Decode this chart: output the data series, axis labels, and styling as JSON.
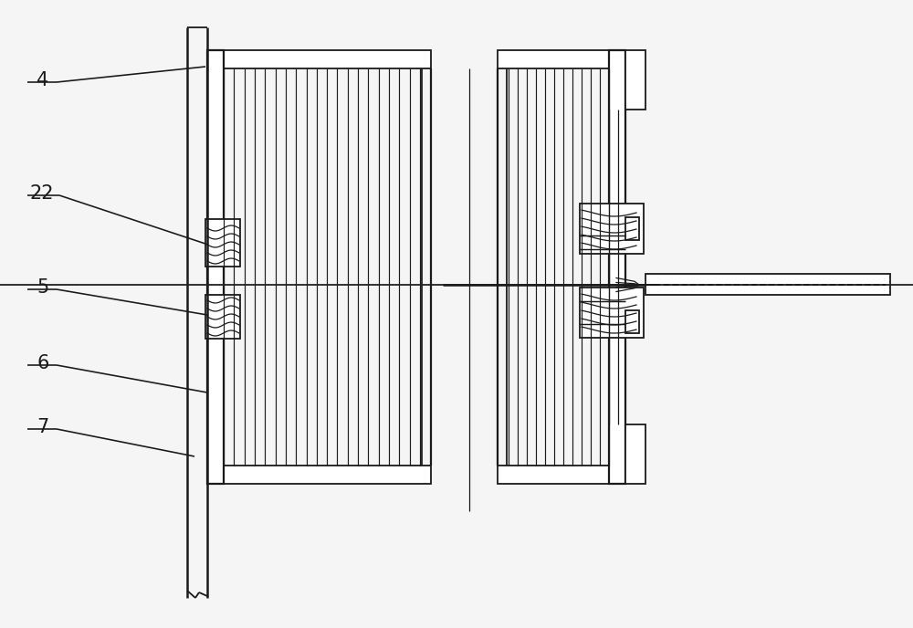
{
  "bg_color": "#f5f5f5",
  "line_color": "#1a1a1a",
  "lw": 1.3,
  "fig_w": 10.0,
  "fig_h": 6.88,
  "label_fontsize": 15
}
